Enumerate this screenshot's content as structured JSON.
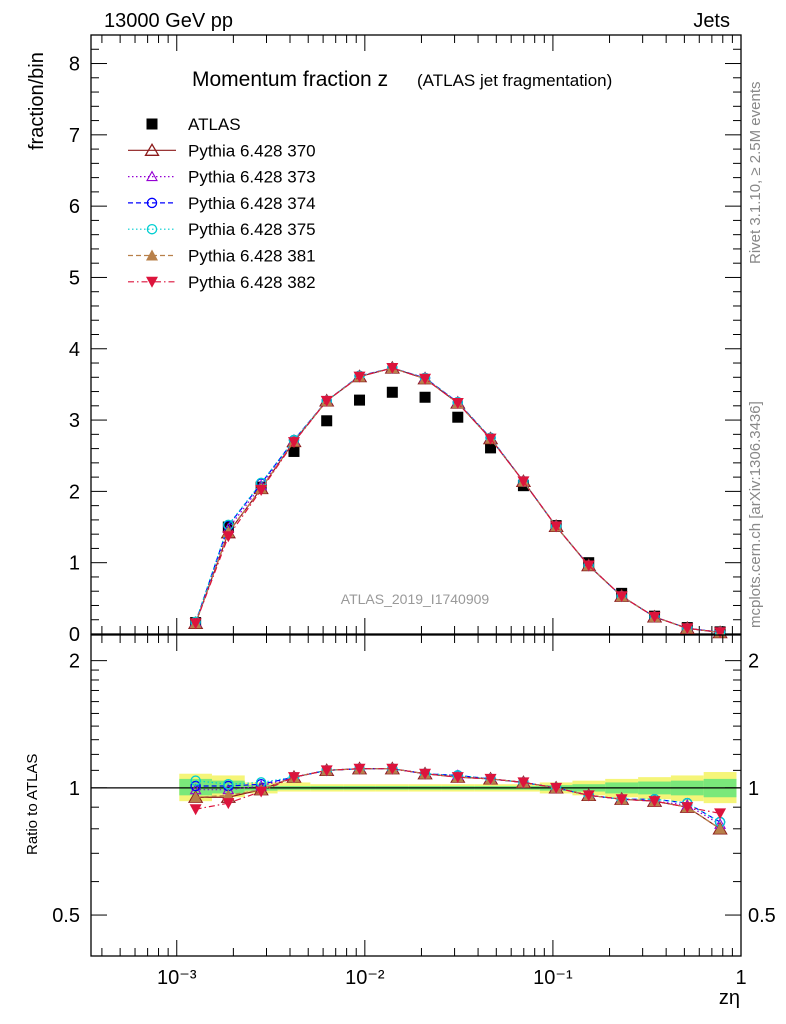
{
  "header": {
    "left": "13000 GeV pp",
    "right": "Jets"
  },
  "side_text": {
    "rivet": "Rivet 3.1.10, ≥ 2.5M events",
    "mcplots": "mcplots.cern.ch [arXiv:1306.3436]"
  },
  "chart_data": [
    {
      "type": "scatter",
      "title_main": "Momentum fraction z",
      "title_sub": "(ATLAS jet fragmentation)",
      "ylabel": "fraction/bin",
      "xlabel": "",
      "watermark": "ATLAS_2019_I1740909",
      "x_scale": "log",
      "xlim": [
        0.00035,
        1.0
      ],
      "ylim": [
        0,
        8.4
      ],
      "y_ticks": [
        0,
        1,
        2,
        3,
        4,
        5,
        6,
        7,
        8
      ],
      "y_tick_labels": [
        "0",
        "1",
        "2",
        "3",
        "4",
        "5",
        "6",
        "7",
        "8"
      ],
      "x": [
        0.00126,
        0.00188,
        0.00281,
        0.0042,
        0.00627,
        0.00937,
        0.014,
        0.0209,
        0.0312,
        0.0466,
        0.0697,
        0.104,
        0.155,
        0.232,
        0.347,
        0.518,
        0.774
      ],
      "legend_position": "top-left",
      "series": [
        {
          "name": "ATLAS",
          "color": "#000000",
          "marker": "square-filled",
          "line": "none",
          "values": [
            0.16,
            1.5,
            2.06,
            2.56,
            2.99,
            3.28,
            3.39,
            3.32,
            3.04,
            2.61,
            2.08,
            1.52,
            1.0,
            0.57,
            0.25,
            0.09,
            0.03
          ]
        },
        {
          "name": "Pythia 6.428 370",
          "color": "#8b1a1a",
          "marker": "triangle-open",
          "line": "solid",
          "values": [
            0.15,
            1.42,
            2.04,
            2.7,
            3.27,
            3.61,
            3.73,
            3.58,
            3.24,
            2.74,
            2.14,
            1.51,
            0.96,
            0.53,
            0.24,
            0.08,
            0.02
          ]
        },
        {
          "name": "Pythia 6.428 373",
          "color": "#9400d3",
          "marker": "triangle-open-small",
          "line": "dotted",
          "values": [
            0.16,
            1.48,
            2.08,
            2.71,
            3.27,
            3.61,
            3.73,
            3.59,
            3.25,
            2.74,
            2.14,
            1.51,
            0.96,
            0.53,
            0.24,
            0.08,
            0.02
          ]
        },
        {
          "name": "Pythia 6.428 374",
          "color": "#0000ff",
          "marker": "circle-open",
          "line": "dashed",
          "values": [
            0.16,
            1.52,
            2.11,
            2.72,
            3.27,
            3.62,
            3.73,
            3.59,
            3.25,
            2.75,
            2.14,
            1.51,
            0.96,
            0.53,
            0.24,
            0.08,
            0.025
          ]
        },
        {
          "name": "Pythia 6.428 375",
          "color": "#00ced1",
          "marker": "circle-open",
          "line": "dotted",
          "values": [
            0.17,
            1.53,
            2.12,
            2.72,
            3.27,
            3.62,
            3.73,
            3.59,
            3.25,
            2.75,
            2.14,
            1.51,
            0.96,
            0.53,
            0.24,
            0.08,
            0.025
          ]
        },
        {
          "name": "Pythia 6.428 381",
          "color": "#b8804a",
          "marker": "triangle-filled",
          "line": "dashed",
          "values": [
            0.15,
            1.43,
            2.04,
            2.7,
            3.27,
            3.61,
            3.73,
            3.58,
            3.24,
            2.74,
            2.14,
            1.51,
            0.96,
            0.53,
            0.24,
            0.08,
            0.02
          ]
        },
        {
          "name": "Pythia 6.428 382",
          "color": "#dc143c",
          "marker": "triangle-down-filled",
          "line": "dashdot",
          "values": [
            0.15,
            1.37,
            2.02,
            2.69,
            3.27,
            3.61,
            3.73,
            3.58,
            3.24,
            2.74,
            2.14,
            1.51,
            0.96,
            0.53,
            0.24,
            0.08,
            0.025
          ]
        }
      ]
    },
    {
      "type": "scatter",
      "ylabel": "Ratio to ATLAS",
      "xlabel": "zη",
      "x_scale": "log",
      "y_scale": "log",
      "xlim": [
        0.00035,
        1.0
      ],
      "ylim": [
        0.4,
        2.3
      ],
      "y_ticks": [
        0.5,
        1,
        2
      ],
      "y_tick_labels": [
        "0.5",
        "1",
        "2"
      ],
      "x_ticks": [
        0.001,
        0.01,
        0.1,
        1
      ],
      "x_tick_labels": [
        "10⁻³",
        "10⁻²",
        "10⁻¹",
        "1"
      ],
      "reference_line": 1.0,
      "bands": {
        "outer_color": "#f5f578",
        "inner_color": "#7ae87a",
        "outer": [
          [
            0.93,
            1.08
          ],
          [
            0.95,
            1.07
          ],
          [
            0.97,
            1.03
          ],
          [
            0.98,
            1.03
          ],
          [
            0.98,
            1.02
          ],
          [
            0.98,
            1.02
          ],
          [
            0.98,
            1.02
          ],
          [
            0.98,
            1.02
          ],
          [
            0.98,
            1.02
          ],
          [
            0.98,
            1.02
          ],
          [
            0.98,
            1.02
          ],
          [
            0.97,
            1.03
          ],
          [
            0.96,
            1.04
          ],
          [
            0.95,
            1.05
          ],
          [
            0.94,
            1.06
          ],
          [
            0.93,
            1.07
          ],
          [
            0.92,
            1.09
          ]
        ],
        "inner": [
          [
            0.96,
            1.05
          ],
          [
            0.97,
            1.04
          ],
          [
            0.985,
            1.015
          ],
          [
            0.99,
            1.01
          ],
          [
            0.99,
            1.01
          ],
          [
            0.99,
            1.01
          ],
          [
            0.99,
            1.01
          ],
          [
            0.99,
            1.01
          ],
          [
            0.99,
            1.01
          ],
          [
            0.99,
            1.01
          ],
          [
            0.99,
            1.01
          ],
          [
            0.985,
            1.015
          ],
          [
            0.98,
            1.02
          ],
          [
            0.97,
            1.03
          ],
          [
            0.965,
            1.035
          ],
          [
            0.96,
            1.04
          ],
          [
            0.95,
            1.05
          ]
        ]
      },
      "series": [
        {
          "name": "Pythia 6.428 370",
          "color": "#8b1a1a",
          "marker": "triangle-open",
          "line": "solid",
          "values": [
            0.95,
            0.95,
            0.99,
            1.06,
            1.1,
            1.11,
            1.11,
            1.08,
            1.06,
            1.05,
            1.03,
            1.0,
            0.96,
            0.94,
            0.93,
            0.9,
            0.8
          ]
        },
        {
          "name": "Pythia 6.428 373",
          "color": "#9400d3",
          "marker": "triangle-open-small",
          "line": "dotted",
          "values": [
            0.99,
            0.99,
            1.01,
            1.06,
            1.1,
            1.11,
            1.11,
            1.08,
            1.07,
            1.05,
            1.03,
            1.0,
            0.96,
            0.94,
            0.93,
            0.91,
            0.82
          ]
        },
        {
          "name": "Pythia 6.428 374",
          "color": "#0000ff",
          "marker": "circle-open",
          "line": "dashed",
          "values": [
            1.01,
            1.01,
            1.02,
            1.06,
            1.1,
            1.11,
            1.11,
            1.08,
            1.07,
            1.05,
            1.03,
            1.0,
            0.96,
            0.94,
            0.94,
            0.92,
            0.83
          ]
        },
        {
          "name": "Pythia 6.428 375",
          "color": "#00ced1",
          "marker": "circle-open",
          "line": "dotted",
          "values": [
            1.04,
            1.02,
            1.03,
            1.06,
            1.1,
            1.11,
            1.11,
            1.08,
            1.07,
            1.05,
            1.03,
            1.0,
            0.96,
            0.94,
            0.94,
            0.92,
            0.83
          ]
        },
        {
          "name": "Pythia 6.428 381",
          "color": "#b8804a",
          "marker": "triangle-filled",
          "line": "dashed",
          "values": [
            0.95,
            0.96,
            0.99,
            1.06,
            1.1,
            1.11,
            1.11,
            1.08,
            1.06,
            1.05,
            1.03,
            1.0,
            0.96,
            0.94,
            0.93,
            0.9,
            0.8
          ]
        },
        {
          "name": "Pythia 6.428 382",
          "color": "#dc143c",
          "marker": "triangle-down-filled",
          "line": "dashdot",
          "values": [
            0.89,
            0.92,
            0.98,
            1.06,
            1.1,
            1.11,
            1.11,
            1.08,
            1.06,
            1.05,
            1.03,
            1.0,
            0.96,
            0.94,
            0.93,
            0.9,
            0.87
          ]
        }
      ]
    }
  ]
}
